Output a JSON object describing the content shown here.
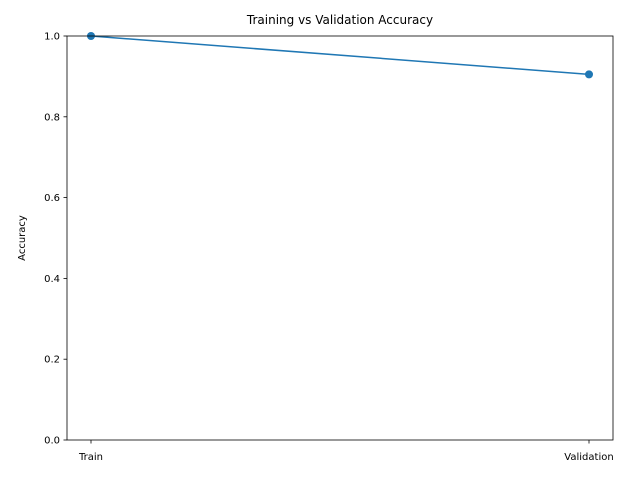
{
  "chart_data": {
    "type": "line",
    "title": "Training vs Validation Accuracy",
    "xlabel": "",
    "ylabel": "Accuracy",
    "categories": [
      "Train",
      "Validation"
    ],
    "series": [
      {
        "values": [
          1.0,
          0.905
        ],
        "color": "#1f77b4",
        "marker": "circle"
      }
    ],
    "ylim": [
      0,
      1.0
    ],
    "yticks": [
      0.0,
      0.2,
      0.4,
      0.6,
      0.8,
      1.0
    ],
    "ytick_labels": [
      "0.0",
      "0.2",
      "0.4",
      "0.6",
      "0.8",
      "1.0"
    ],
    "grid": false,
    "legend": "none"
  }
}
